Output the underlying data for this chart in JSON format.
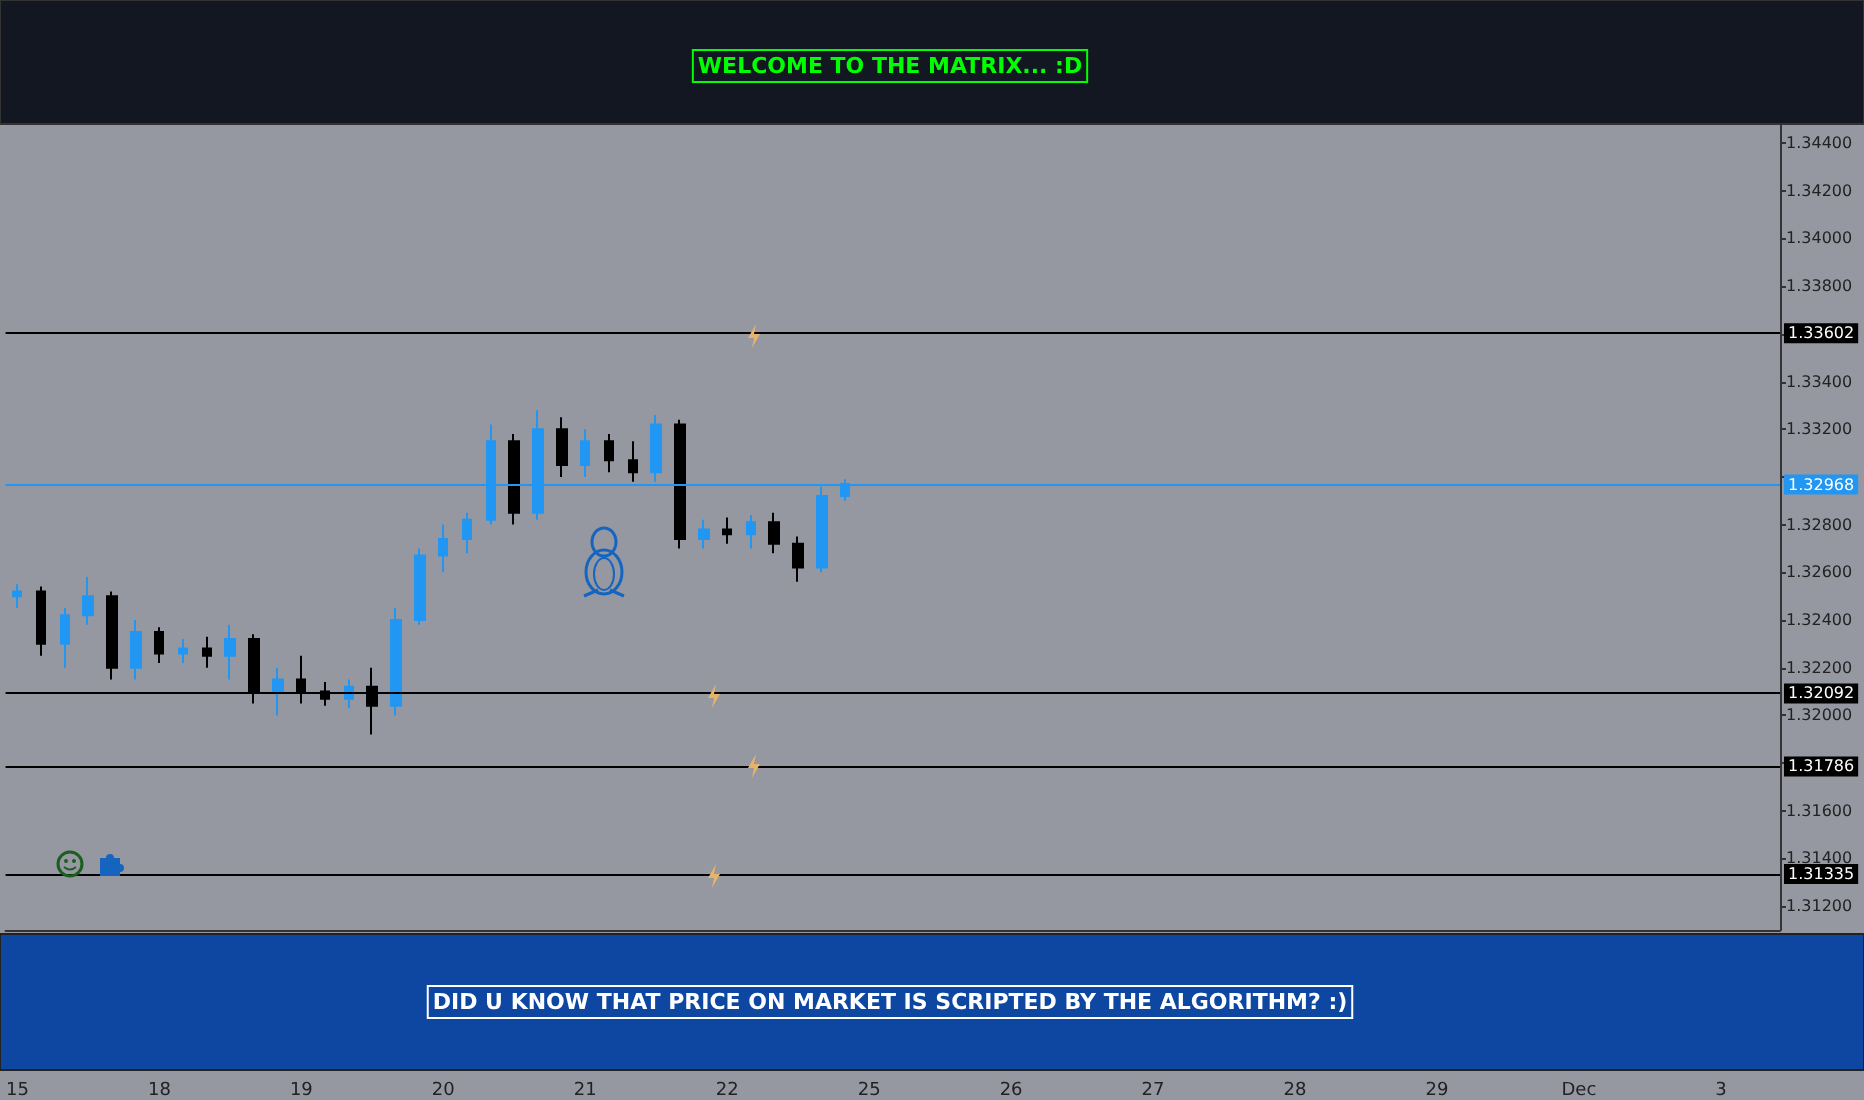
{
  "chart_data": {
    "type": "candlestick",
    "annotations": [
      "WELCOME TO THE MATRIX... :D",
      "DID U KNOW THAT PRICE ON MARKET IS SCRIPTED BY THE ALGORITHM? :)"
    ],
    "categories": [
      "15",
      null,
      null,
      null,
      null,
      null,
      "18",
      null,
      null,
      null,
      null,
      null,
      "19",
      null,
      null,
      null,
      null,
      null,
      "20",
      null,
      null,
      null,
      null,
      null,
      "21",
      null,
      null,
      null,
      null,
      null,
      "22",
      null,
      null,
      null,
      null,
      null,
      "25",
      null,
      null,
      null,
      null,
      null,
      "26",
      null,
      null,
      null,
      null,
      null,
      "27",
      null,
      null,
      null,
      null,
      null,
      "28",
      null,
      null,
      null,
      null,
      null,
      "29",
      null,
      null,
      null,
      null,
      null,
      "Dec",
      null,
      null,
      null,
      null,
      null,
      "3",
      null,
      null
    ],
    "colors": [
      "#2196f3",
      "#000000",
      "#2196f3",
      "#2196f3",
      "#000000",
      "#2196f3",
      "#000000",
      "#2196f3",
      "#000000",
      "#2196f3",
      "#000000",
      "#2196f3",
      "#000000",
      "#000000",
      "#2196f3",
      "#000000",
      "#2196f3",
      "#2196f3",
      "#2196f3",
      "#2196f3",
      "#2196f3",
      "#000000",
      "#2196f3",
      "#000000",
      "#2196f3",
      "#000000",
      "#000000",
      "#2196f3",
      "#000000",
      "#2196f3",
      "#000000",
      "#2196f3",
      "#000000",
      "#000000",
      "#2196f3",
      "#2196f3",
      null,
      null,
      null,
      null,
      null,
      null,
      null,
      null,
      null,
      null,
      null,
      null,
      null,
      null,
      null,
      null,
      null,
      null,
      null,
      null,
      null,
      null,
      null,
      null,
      null,
      null,
      null,
      null,
      null,
      null,
      null,
      null,
      null,
      null,
      null,
      null,
      null,
      null,
      null
    ],
    "ohlc": [
      [
        1.325,
        1.3255,
        1.3245,
        1.3252
      ],
      [
        1.3252,
        1.3254,
        1.3225,
        1.323
      ],
      [
        1.323,
        1.3245,
        1.322,
        1.3242
      ],
      [
        1.3242,
        1.3258,
        1.3238,
        1.325
      ],
      [
        1.325,
        1.3252,
        1.3215,
        1.322
      ],
      [
        1.322,
        1.324,
        1.3215,
        1.3235
      ],
      [
        1.3235,
        1.3237,
        1.3222,
        1.3226
      ],
      [
        1.3226,
        1.3232,
        1.3222,
        1.3228
      ],
      [
        1.3228,
        1.3233,
        1.322,
        1.3225
      ],
      [
        1.3225,
        1.3238,
        1.3215,
        1.3232
      ],
      [
        1.3232,
        1.3234,
        1.3205,
        1.321
      ],
      [
        1.321,
        1.322,
        1.32,
        1.3215
      ],
      [
        1.3215,
        1.3225,
        1.3205,
        1.321
      ],
      [
        1.321,
        1.3214,
        1.3204,
        1.3207
      ],
      [
        1.3207,
        1.3215,
        1.3203,
        1.3212
      ],
      [
        1.3212,
        1.322,
        1.3192,
        1.3204
      ],
      [
        1.3204,
        1.3245,
        1.32,
        1.324
      ],
      [
        1.324,
        1.327,
        1.3238,
        1.3267
      ],
      [
        1.3267,
        1.328,
        1.326,
        1.3274
      ],
      [
        1.3274,
        1.3285,
        1.3268,
        1.3282
      ],
      [
        1.3282,
        1.3322,
        1.328,
        1.3315
      ],
      [
        1.3315,
        1.3318,
        1.328,
        1.3285
      ],
      [
        1.3285,
        1.3328,
        1.3282,
        1.332
      ],
      [
        1.332,
        1.3325,
        1.33,
        1.3305
      ],
      [
        1.3305,
        1.332,
        1.33,
        1.3315
      ],
      [
        1.3315,
        1.3318,
        1.3302,
        1.3307
      ],
      [
        1.3307,
        1.3315,
        1.3298,
        1.3302
      ],
      [
        1.3302,
        1.3326,
        1.3298,
        1.3322
      ],
      [
        1.3322,
        1.3324,
        1.327,
        1.3274
      ],
      [
        1.3274,
        1.3282,
        1.327,
        1.3278
      ],
      [
        1.3278,
        1.3283,
        1.3272,
        1.3276
      ],
      [
        1.3276,
        1.3284,
        1.327,
        1.3281
      ],
      [
        1.3281,
        1.3285,
        1.3268,
        1.3272
      ],
      [
        1.3272,
        1.3275,
        1.3256,
        1.3262
      ],
      [
        1.3262,
        1.3296,
        1.326,
        1.3292
      ],
      [
        1.3292,
        1.3299,
        1.329,
        1.3297
      ],
      null,
      null,
      null,
      null,
      null,
      null,
      null,
      null,
      null,
      null,
      null,
      null,
      null,
      null,
      null,
      null,
      null,
      null,
      null,
      null,
      null,
      null,
      null,
      null,
      null,
      null,
      null,
      null,
      null,
      null,
      null,
      null,
      null,
      null,
      null,
      null,
      null,
      null,
      null
    ],
    "ylim": [
      1.311,
      1.3448
    ],
    "yticks": [
      {
        "value": 1.312,
        "label": "1.31200"
      },
      {
        "value": 1.314,
        "label": "1.31400"
      },
      {
        "value": 1.316,
        "label": "1.31600"
      },
      {
        "value": 1.318,
        "label": null
      },
      {
        "value": 1.32,
        "label": "1.32000"
      },
      {
        "value": 1.322,
        "label": "1.32200"
      },
      {
        "value": 1.324,
        "label": "1.32400"
      },
      {
        "value": 1.326,
        "label": "1.32600"
      },
      {
        "value": 1.328,
        "label": "1.32800"
      },
      {
        "value": 1.33,
        "label": null
      },
      {
        "value": 1.332,
        "label": "1.33200"
      },
      {
        "value": 1.334,
        "label": "1.33400"
      },
      {
        "value": 1.336,
        "label": null
      },
      {
        "value": 1.338,
        "label": "1.33800"
      },
      {
        "value": 1.34,
        "label": "1.34000"
      },
      {
        "value": 1.342,
        "label": "1.34200"
      },
      {
        "value": 1.344,
        "label": "1.34400"
      }
    ],
    "ref_lines": [
      {
        "axis": "y",
        "value": 1.33602,
        "label": "1.33602",
        "color": "#000000"
      },
      {
        "axis": "y",
        "value": 1.32968,
        "label": "1.32968",
        "color": "#2196f3"
      },
      {
        "axis": "y",
        "value": 1.32092,
        "label": "1.32092",
        "color": "#000000"
      },
      {
        "axis": "y",
        "value": 1.31786,
        "label": "1.31786",
        "color": "#000000"
      },
      {
        "axis": "y",
        "value": 1.31335,
        "label": "1.31335",
        "color": "#000000"
      }
    ]
  }
}
